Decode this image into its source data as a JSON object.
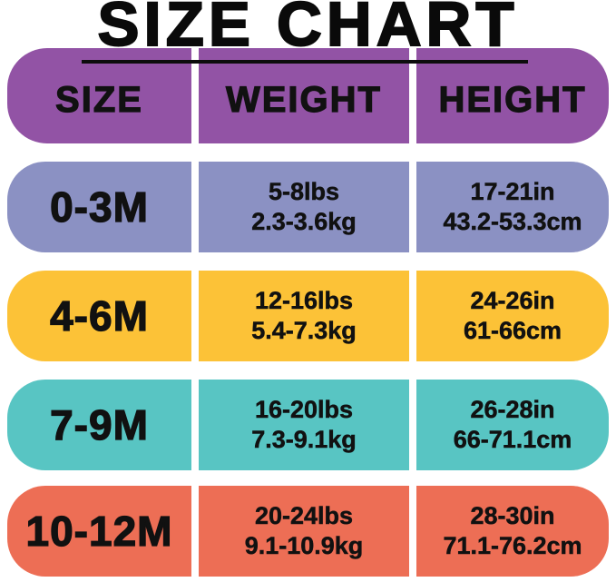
{
  "title": "SIZE CHART",
  "colors": {
    "background": "#ffffff",
    "text": "#111111",
    "title_underline": "#0d0d0d",
    "header": "#9253a5",
    "row_0_3m": "#8b91c3",
    "row_4_6m": "#fcc237",
    "row_7_9m": "#58c5c3",
    "row_10_12m": "#ed6e55"
  },
  "chart_data": {
    "type": "table",
    "title": "SIZE CHART",
    "header_color": "#9253a5",
    "columns": [
      "SIZE",
      "WEIGHT",
      "HEIGHT"
    ],
    "rows": [
      {
        "size": "0-3M",
        "weight": {
          "imperial": "5-8lbs",
          "metric": "2.3-3.6kg"
        },
        "height": {
          "imperial": "17-21in",
          "metric": "43.2-53.3cm"
        },
        "row_color": "#8b91c3"
      },
      {
        "size": "4-6M",
        "weight": {
          "imperial": "12-16lbs",
          "metric": "5.4-7.3kg"
        },
        "height": {
          "imperial": "24-26in",
          "metric": "61-66cm"
        },
        "row_color": "#fcc237"
      },
      {
        "size": "7-9M",
        "weight": {
          "imperial": "16-20lbs",
          "metric": "7.3-9.1kg"
        },
        "height": {
          "imperial": "26-28in",
          "metric": "66-71.1cm"
        },
        "row_color": "#58c5c3"
      },
      {
        "size": "10-12M",
        "weight": {
          "imperial": "20-24lbs",
          "metric": "9.1-10.9kg"
        },
        "height": {
          "imperial": "28-30in",
          "metric": "71.1-76.2cm"
        },
        "row_color": "#ed6e55"
      }
    ]
  }
}
